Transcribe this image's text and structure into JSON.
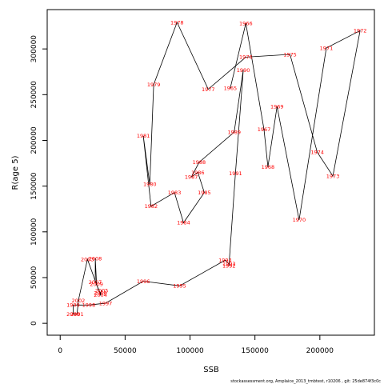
{
  "chart_data": {
    "type": "line",
    "xlabel": "SSB",
    "ylabel": "R(age 5)",
    "xlim": [
      -10000,
      242000
    ],
    "ylim": [
      -13000,
      343000
    ],
    "x_ticks": [
      0,
      50000,
      100000,
      150000,
      200000
    ],
    "y_ticks": [
      0,
      50000,
      100000,
      150000,
      200000,
      250000,
      300000
    ],
    "footer": "stockassessment.org,  Amplaice_2013_tmbtest,  r10206 ,  git: 25de874f3c0c",
    "label_color": "#ff0000",
    "line_color": "#000000",
    "points": [
      {
        "year": "1965",
        "x": 131000,
        "y": 257000
      },
      {
        "year": "1966",
        "x": 143000,
        "y": 328000
      },
      {
        "year": "1967",
        "x": 157000,
        "y": 212000
      },
      {
        "year": "1968",
        "x": 160000,
        "y": 171000
      },
      {
        "year": "1969",
        "x": 167000,
        "y": 237000
      },
      {
        "year": "1970",
        "x": 184000,
        "y": 113000
      },
      {
        "year": "1971",
        "x": 205000,
        "y": 301000
      },
      {
        "year": "1972",
        "x": 231000,
        "y": 320000
      },
      {
        "year": "1973",
        "x": 210000,
        "y": 161000
      },
      {
        "year": "1974",
        "x": 198000,
        "y": 187000
      },
      {
        "year": "1975",
        "x": 177000,
        "y": 294000
      },
      {
        "year": "1976",
        "x": 143000,
        "y": 291000
      },
      {
        "year": "1977",
        "x": 114000,
        "y": 256000
      },
      {
        "year": "1978",
        "x": 90000,
        "y": 329000
      },
      {
        "year": "1979",
        "x": 72000,
        "y": 261000
      },
      {
        "year": "1980",
        "x": 69000,
        "y": 152000
      },
      {
        "year": "1981",
        "x": 64000,
        "y": 205000
      },
      {
        "year": "1982",
        "x": 70000,
        "y": 128000
      },
      {
        "year": "1983",
        "x": 88000,
        "y": 143000
      },
      {
        "year": "1984",
        "x": 95000,
        "y": 110000
      },
      {
        "year": "1985",
        "x": 111000,
        "y": 143000
      },
      {
        "year": "1986",
        "x": 106000,
        "y": 165000
      },
      {
        "year": "1987",
        "x": 101000,
        "y": 160000
      },
      {
        "year": "1988",
        "x": 107000,
        "y": 176000
      },
      {
        "year": "1989",
        "x": 134000,
        "y": 209000
      },
      {
        "year": "1990",
        "x": 141000,
        "y": 277000
      },
      {
        "year": "1991",
        "x": 135000,
        "y": 164000
      },
      {
        "year": "1992",
        "x": 130000,
        "y": 63000
      },
      {
        "year": "1993",
        "x": 130000,
        "y": 65000
      },
      {
        "year": "1994",
        "x": 127000,
        "y": 69000
      },
      {
        "year": "1995",
        "x": 92000,
        "y": 41000
      },
      {
        "year": "1996",
        "x": 64000,
        "y": 46000
      },
      {
        "year": "1997",
        "x": 35000,
        "y": 22000
      },
      {
        "year": "1998",
        "x": 22000,
        "y": 20000
      },
      {
        "year": "1999",
        "x": 10000,
        "y": 20000
      },
      {
        "year": "2000",
        "x": 10000,
        "y": 10000
      },
      {
        "year": "2001",
        "x": 13000,
        "y": 10000
      },
      {
        "year": "2002",
        "x": 14000,
        "y": 25000
      },
      {
        "year": "2003",
        "x": 21000,
        "y": 70000
      },
      {
        "year": "2004",
        "x": 31000,
        "y": 31000
      },
      {
        "year": "2005",
        "x": 32000,
        "y": 36000
      },
      {
        "year": "2006",
        "x": 31000,
        "y": 33000
      },
      {
        "year": "2007",
        "x": 27000,
        "y": 45000
      },
      {
        "year": "2008",
        "x": 27000,
        "y": 71000
      },
      {
        "year": "2009",
        "x": 28000,
        "y": 43000
      }
    ]
  }
}
